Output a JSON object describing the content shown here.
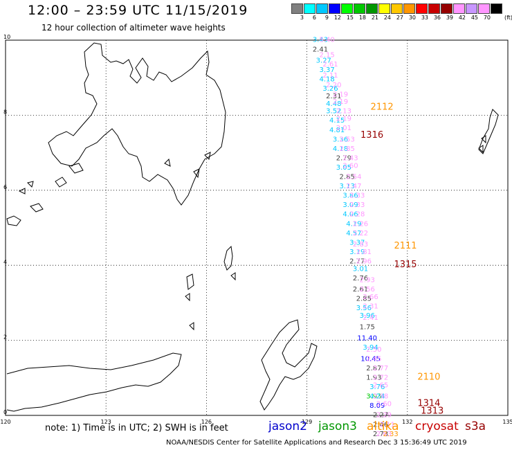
{
  "header": {
    "title": "12:00 – 23:59 UTC 11/15/2019",
    "subtitle": "12 hour collection of altimeter wave heights"
  },
  "legend": {
    "unit": "(ft)",
    "bins": [
      {
        "label": "3",
        "color": "#808080"
      },
      {
        "label": "6",
        "color": "#00ffff"
      },
      {
        "label": "9",
        "color": "#00c8ff"
      },
      {
        "label": "12",
        "color": "#0000ff"
      },
      {
        "label": "15",
        "color": "#00ff00"
      },
      {
        "label": "18",
        "color": "#00c800"
      },
      {
        "label": "21",
        "color": "#009600"
      },
      {
        "label": "24",
        "color": "#ffff00"
      },
      {
        "label": "27",
        "color": "#ffc800"
      },
      {
        "label": "30",
        "color": "#ff9600"
      },
      {
        "label": "33",
        "color": "#ff0000"
      },
      {
        "label": "36",
        "color": "#c80000"
      },
      {
        "label": "39",
        "color": "#960000"
      },
      {
        "label": "42",
        "color": "#ff96ff"
      },
      {
        "label": "45",
        "color": "#c896ff"
      },
      {
        "label": "70",
        "color": "#ff96ff"
      },
      {
        "label": "",
        "color": "#000000"
      }
    ]
  },
  "axes": {
    "lon_ticks": [
      "120",
      "123",
      "126",
      "129",
      "132",
      "135"
    ],
    "lat_ticks": [
      "0",
      "2",
      "4",
      "6",
      "8",
      "10"
    ],
    "lon_range": [
      120,
      135
    ],
    "lat_range": [
      0,
      10
    ],
    "grid": "dotted"
  },
  "chart_data": {
    "type": "scatter",
    "title": "12:00 – 23:59 UTC 11/15/2019",
    "subtitle": "12 hour collection of altimeter wave heights",
    "xlabel": "",
    "ylabel": "",
    "xlim": [
      120,
      135
    ],
    "ylim": [
      0,
      10
    ],
    "satellite_colors": {
      "jason2": "#0000cc",
      "jason3": "#009600",
      "altika": "#ff9600",
      "cryosat": "#c80000",
      "s3a": "#960000"
    },
    "time_labels": [
      {
        "text": "2112",
        "sat": "altika",
        "lon": 130.9,
        "lat": 8.15
      },
      {
        "text": "1316",
        "sat": "s3a",
        "lon": 130.6,
        "lat": 7.4
      },
      {
        "text": "2111",
        "sat": "altika",
        "lon": 131.6,
        "lat": 4.45
      },
      {
        "text": "1315",
        "sat": "s3a",
        "lon": 131.6,
        "lat": 3.95
      },
      {
        "text": "2110",
        "sat": "altika",
        "lon": 132.3,
        "lat": 0.95
      },
      {
        "text": "1314",
        "sat": "s3a",
        "lon": 132.3,
        "lat": 0.25
      },
      {
        "text": "1313",
        "sat": "s3a",
        "lon": 132.4,
        "lat": 0.05
      }
    ],
    "series": [
      {
        "name": "swh",
        "points": [
          {
            "lon": 129.4,
            "lat": 9.95,
            "v": "3.43",
            "c": "#00c8ff"
          },
          {
            "lon": 129.6,
            "lat": 9.95,
            "v": "5.40",
            "c": "#ff96ff"
          },
          {
            "lon": 129.4,
            "lat": 9.7,
            "v": "2.41",
            "c": "#404040"
          },
          {
            "lon": 129.6,
            "lat": 9.55,
            "v": "2.15",
            "c": "#ff96ff"
          },
          {
            "lon": 129.5,
            "lat": 9.4,
            "v": "3.27",
            "c": "#00c8ff"
          },
          {
            "lon": 129.7,
            "lat": 9.3,
            "v": "2.61",
            "c": "#ff96ff"
          },
          {
            "lon": 129.6,
            "lat": 9.15,
            "v": "3.37",
            "c": "#00c8ff"
          },
          {
            "lon": 129.7,
            "lat": 9.0,
            "v": "2.11",
            "c": "#ff96ff"
          },
          {
            "lon": 129.6,
            "lat": 8.9,
            "v": "4.18",
            "c": "#00c8ff"
          },
          {
            "lon": 129.8,
            "lat": 8.75,
            "v": "2.20",
            "c": "#ff96ff"
          },
          {
            "lon": 129.7,
            "lat": 8.65,
            "v": "3.26",
            "c": "#00c8ff"
          },
          {
            "lon": 129.8,
            "lat": 8.45,
            "v": "2.31",
            "c": "#404040"
          },
          {
            "lon": 130.0,
            "lat": 8.5,
            "v": "2.19",
            "c": "#ff96ff"
          },
          {
            "lon": 129.8,
            "lat": 8.25,
            "v": "4.48",
            "c": "#00c8ff"
          },
          {
            "lon": 130.0,
            "lat": 8.3,
            "v": "2.19",
            "c": "#ff96ff"
          },
          {
            "lon": 129.8,
            "lat": 8.05,
            "v": "3.52",
            "c": "#00c8ff"
          },
          {
            "lon": 130.1,
            "lat": 8.05,
            "v": "2.13",
            "c": "#ff96ff"
          },
          {
            "lon": 129.9,
            "lat": 7.8,
            "v": "4.15",
            "c": "#00c8ff"
          },
          {
            "lon": 130.1,
            "lat": 7.85,
            "v": "2.19",
            "c": "#ff96ff"
          },
          {
            "lon": 129.9,
            "lat": 7.55,
            "v": "4.81",
            "c": "#00c8ff"
          },
          {
            "lon": 130.1,
            "lat": 7.6,
            "v": "2.01",
            "c": "#ff96ff"
          },
          {
            "lon": 130.0,
            "lat": 7.3,
            "v": "3.36",
            "c": "#00c8ff"
          },
          {
            "lon": 130.2,
            "lat": 7.3,
            "v": "2.53",
            "c": "#ff96ff"
          },
          {
            "lon": 130.0,
            "lat": 7.05,
            "v": "4.18",
            "c": "#00c8ff"
          },
          {
            "lon": 130.2,
            "lat": 7.05,
            "v": "2.85",
            "c": "#ff96ff"
          },
          {
            "lon": 130.1,
            "lat": 6.8,
            "v": "2.79",
            "c": "#404040"
          },
          {
            "lon": 130.3,
            "lat": 6.8,
            "v": "2.43",
            "c": "#ff96ff"
          },
          {
            "lon": 130.1,
            "lat": 6.55,
            "v": "3.05",
            "c": "#00c8ff"
          },
          {
            "lon": 130.3,
            "lat": 6.6,
            "v": "2.60",
            "c": "#ff96ff"
          },
          {
            "lon": 130.2,
            "lat": 6.3,
            "v": "2.85",
            "c": "#404040"
          },
          {
            "lon": 130.4,
            "lat": 6.3,
            "v": "2.54",
            "c": "#ff96ff"
          },
          {
            "lon": 130.2,
            "lat": 6.05,
            "v": "3.13",
            "c": "#00c8ff"
          },
          {
            "lon": 130.4,
            "lat": 6.05,
            "v": "2.47",
            "c": "#ff96ff"
          },
          {
            "lon": 130.3,
            "lat": 5.8,
            "v": "3.86",
            "c": "#00c8ff"
          },
          {
            "lon": 130.5,
            "lat": 5.8,
            "v": "2.33",
            "c": "#ff96ff"
          },
          {
            "lon": 130.3,
            "lat": 5.55,
            "v": "3.09",
            "c": "#00c8ff"
          },
          {
            "lon": 130.5,
            "lat": 5.55,
            "v": "2.33",
            "c": "#ff96ff"
          },
          {
            "lon": 130.3,
            "lat": 5.3,
            "v": "4.06",
            "c": "#00c8ff"
          },
          {
            "lon": 130.5,
            "lat": 5.3,
            "v": "2.28",
            "c": "#ff96ff"
          },
          {
            "lon": 130.4,
            "lat": 5.05,
            "v": "4.19",
            "c": "#00c8ff"
          },
          {
            "lon": 130.6,
            "lat": 5.05,
            "v": "2.26",
            "c": "#ff96ff"
          },
          {
            "lon": 130.4,
            "lat": 4.8,
            "v": "4.57",
            "c": "#00c8ff"
          },
          {
            "lon": 130.6,
            "lat": 4.8,
            "v": "2.22",
            "c": "#ff96ff"
          },
          {
            "lon": 130.5,
            "lat": 4.55,
            "v": "3.37",
            "c": "#00c8ff"
          },
          {
            "lon": 130.6,
            "lat": 4.5,
            "v": "2.83",
            "c": "#ff96ff"
          },
          {
            "lon": 130.5,
            "lat": 4.3,
            "v": "3.19",
            "c": "#00c8ff"
          },
          {
            "lon": 130.7,
            "lat": 4.3,
            "v": "2.81",
            "c": "#ff96ff"
          },
          {
            "lon": 130.5,
            "lat": 4.05,
            "v": "2.77",
            "c": "#404040"
          },
          {
            "lon": 130.7,
            "lat": 4.05,
            "v": "2.96",
            "c": "#ff96ff"
          },
          {
            "lon": 130.6,
            "lat": 3.85,
            "v": "3.01",
            "c": "#00c8ff"
          },
          {
            "lon": 130.6,
            "lat": 3.6,
            "v": "2.76",
            "c": "#404040"
          },
          {
            "lon": 130.8,
            "lat": 3.55,
            "v": "2.93",
            "c": "#ff96ff"
          },
          {
            "lon": 130.6,
            "lat": 3.3,
            "v": "2.61",
            "c": "#404040"
          },
          {
            "lon": 130.8,
            "lat": 3.3,
            "v": "2.56",
            "c": "#ff96ff"
          },
          {
            "lon": 130.7,
            "lat": 3.05,
            "v": "2.85",
            "c": "#404040"
          },
          {
            "lon": 130.9,
            "lat": 3.1,
            "v": "2.66",
            "c": "#ff96ff"
          },
          {
            "lon": 130.7,
            "lat": 2.8,
            "v": "3.56",
            "c": "#00c8ff"
          },
          {
            "lon": 130.9,
            "lat": 2.85,
            "v": "2.31",
            "c": "#ff96ff"
          },
          {
            "lon": 130.8,
            "lat": 2.6,
            "v": "3.96",
            "c": "#00c8ff"
          },
          {
            "lon": 130.9,
            "lat": 2.55,
            "v": "2.41",
            "c": "#ff96ff"
          },
          {
            "lon": 130.8,
            "lat": 2.3,
            "v": "1.75",
            "c": "#404040"
          },
          {
            "lon": 130.8,
            "lat": 2.0,
            "v": "11.40",
            "c": "#0000ff"
          },
          {
            "lon": 130.9,
            "lat": 1.75,
            "v": "3.94",
            "c": "#00c8ff"
          },
          {
            "lon": 131.0,
            "lat": 1.7,
            "v": "2.50",
            "c": "#ff96ff"
          },
          {
            "lon": 130.9,
            "lat": 1.45,
            "v": "10.45",
            "c": "#0000ff"
          },
          {
            "lon": 131.0,
            "lat": 1.45,
            "v": "2.45",
            "c": "#ff96ff"
          },
          {
            "lon": 131.0,
            "lat": 1.2,
            "v": "2.87",
            "c": "#404040"
          },
          {
            "lon": 131.2,
            "lat": 1.2,
            "v": "2.77",
            "c": "#ff96ff"
          },
          {
            "lon": 131.0,
            "lat": 0.95,
            "v": "1.93",
            "c": "#404040"
          },
          {
            "lon": 131.2,
            "lat": 0.95,
            "v": "2.72",
            "c": "#ff96ff"
          },
          {
            "lon": 131.1,
            "lat": 0.7,
            "v": "3.76",
            "c": "#00c8ff"
          },
          {
            "lon": 131.2,
            "lat": 0.75,
            "v": "2.65",
            "c": "#ff96ff"
          },
          {
            "lon": 131.0,
            "lat": 0.45,
            "v": "3.93",
            "c": "#00c800"
          },
          {
            "lon": 131.1,
            "lat": 0.45,
            "v": "4.24",
            "c": "#00c8ff"
          },
          {
            "lon": 131.2,
            "lat": 0.45,
            "v": "2.98",
            "c": "#ff96ff"
          },
          {
            "lon": 131.1,
            "lat": 0.2,
            "v": "8.09",
            "c": "#0000ff"
          },
          {
            "lon": 131.3,
            "lat": 0.25,
            "v": "2.60",
            "c": "#ff96ff"
          },
          {
            "lon": 131.2,
            "lat": -0.05,
            "v": "2.27",
            "c": "#404040"
          },
          {
            "lon": 131.3,
            "lat": -0.05,
            "v": "2.29",
            "c": "#ff96ff"
          },
          {
            "lon": 131.2,
            "lat": -0.3,
            "v": "2.46",
            "c": "#404040"
          },
          {
            "lon": 131.4,
            "lat": -0.3,
            "v": "2.11",
            "c": "#ff96ff"
          },
          {
            "lon": 131.2,
            "lat": -0.55,
            "v": "2.73",
            "c": "#404040"
          },
          {
            "lon": 131.3,
            "lat": -0.55,
            "v": "2.63",
            "c": "#ff96ff"
          },
          {
            "lon": 131.5,
            "lat": -0.55,
            "v": "2.33",
            "c": "#ff9600"
          }
        ]
      }
    ]
  },
  "footer": {
    "note": "note:  1) Time is in UTC;  2) SWH is in feet",
    "satellites": [
      {
        "name": "jason2",
        "color": "#0000cc"
      },
      {
        "name": "jason3",
        "color": "#009600"
      },
      {
        "name": "altika",
        "color": "#ff9600"
      },
      {
        "name": "cryosat",
        "color": "#c80000"
      },
      {
        "name": "s3a",
        "color": "#960000"
      }
    ],
    "credit": "NOAA/NESDIS Center for Satellite Applications and Research    Dec  3 15:36:49 UTC 2019"
  }
}
